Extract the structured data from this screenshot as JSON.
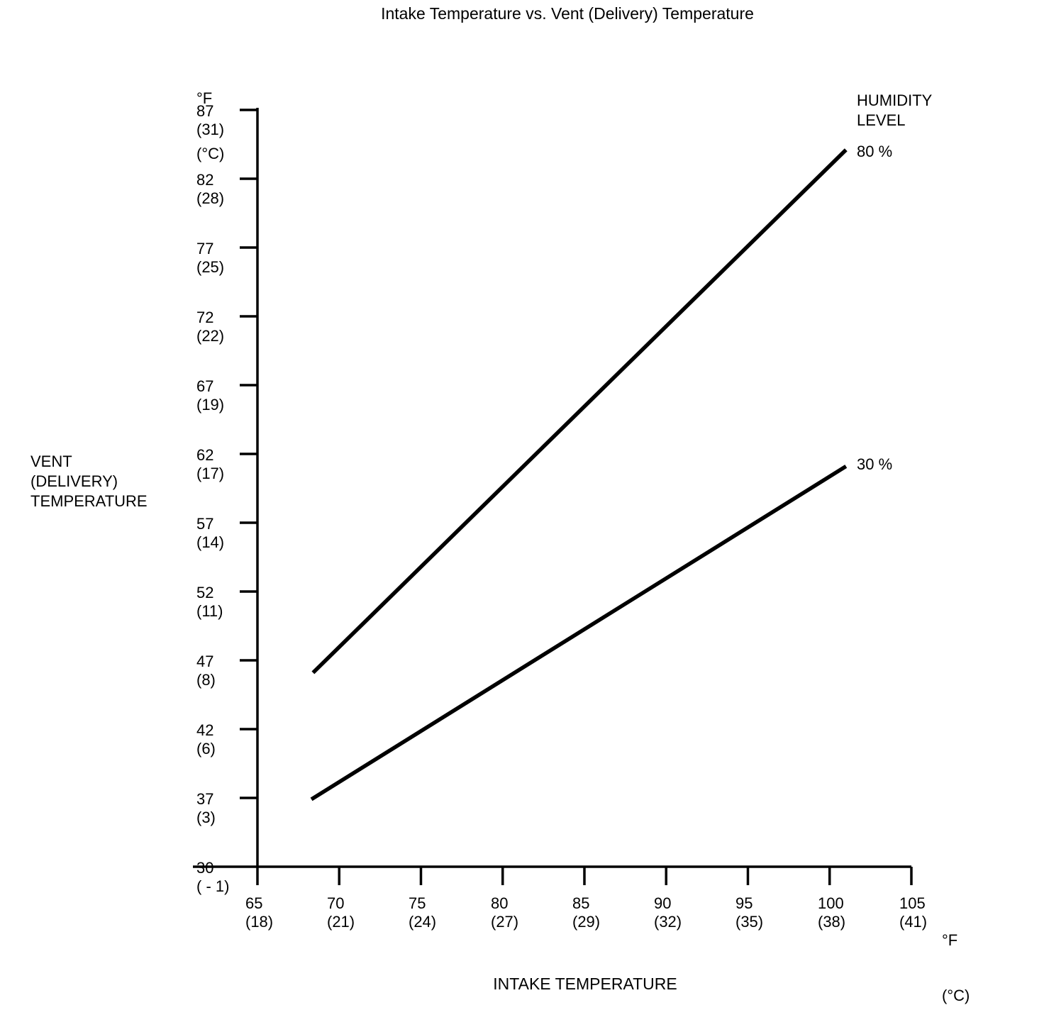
{
  "title": "Intake Temperature vs. Vent (Delivery) Temperature",
  "legend": {
    "title_line1": "HUMIDITY",
    "title_line2": "LEVEL",
    "series_80_label": "80 %",
    "series_30_label": "30 %"
  },
  "y_axis": {
    "unit_f": "°F",
    "unit_c": "(°C)",
    "title_line1": "VENT",
    "title_line2": "(DELIVERY)",
    "title_line3": "TEMPERATURE"
  },
  "x_axis": {
    "unit_f": "°F",
    "unit_c": "(°C)",
    "title": "INTAKE TEMPERATURE"
  },
  "chart_data": {
    "type": "line",
    "title": "Intake Temperature vs. Vent (Delivery) Temperature",
    "xlabel": "INTAKE TEMPERATURE",
    "ylabel": "VENT (DELIVERY) TEMPERATURE",
    "x_unit": "°F (°C)",
    "y_unit": "°F (°C)",
    "xlim": [
      65,
      105
    ],
    "ylim": [
      30,
      87
    ],
    "grid": false,
    "line_color": "#000000",
    "legend_title": "HUMIDITY LEVEL",
    "legend_position": "right of line ends",
    "x_ticks": [
      {
        "v": 65,
        "f": "65",
        "c": "(18)"
      },
      {
        "v": 70,
        "f": "70",
        "c": "(21)"
      },
      {
        "v": 75,
        "f": "75",
        "c": "(24)"
      },
      {
        "v": 80,
        "f": "80",
        "c": "(27)"
      },
      {
        "v": 85,
        "f": "85",
        "c": "(29)"
      },
      {
        "v": 90,
        "f": "90",
        "c": "(32)"
      },
      {
        "v": 95,
        "f": "95",
        "c": "(35)"
      },
      {
        "v": 100,
        "f": "100",
        "c": "(38)"
      },
      {
        "v": 105,
        "f": "105",
        "c": "(41)"
      }
    ],
    "y_ticks": [
      {
        "v": 87,
        "f": "87",
        "c": "(31)"
      },
      {
        "v": 82,
        "f": "82",
        "c": "(28)"
      },
      {
        "v": 77,
        "f": "77",
        "c": "(25)"
      },
      {
        "v": 72,
        "f": "72",
        "c": "(22)"
      },
      {
        "v": 67,
        "f": "67",
        "c": "(19)"
      },
      {
        "v": 62,
        "f": "62",
        "c": "(17)"
      },
      {
        "v": 57,
        "f": "57",
        "c": "(14)"
      },
      {
        "v": 52,
        "f": "52",
        "c": "(11)"
      },
      {
        "v": 47,
        "f": "47",
        "c": "(8)"
      },
      {
        "v": 42,
        "f": "42",
        "c": "(6)"
      },
      {
        "v": 37,
        "f": "37",
        "c": "(3)"
      },
      {
        "v": 30,
        "f": "30",
        "c": "( - 1)"
      }
    ],
    "series": [
      {
        "name": "80 %",
        "humidity_percent": 80,
        "points": [
          [
            68.4,
            46.1
          ],
          [
            101.0,
            84.1
          ]
        ]
      },
      {
        "name": "30 %",
        "humidity_percent": 30,
        "points": [
          [
            68.3,
            36.9
          ],
          [
            101.0,
            61.1
          ]
        ]
      }
    ]
  }
}
